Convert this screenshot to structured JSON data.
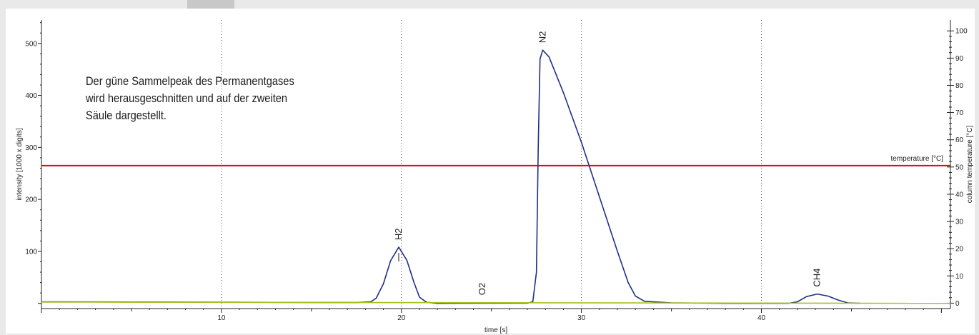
{
  "colors": {
    "background": "#e9e9e9",
    "panel": "#ffffff",
    "chromatogram": "#1f2f86",
    "temperature": "#c81414",
    "baseline": "#a8c020",
    "axis": "#222222",
    "arrow": "#c8c8c8"
  },
  "annotation": {
    "lines": [
      "Der güne Sammelpeak des Permanentgases",
      "wird herausgeschnitten und auf der zweiten",
      "Säule dargestellt."
    ]
  },
  "chart_data": {
    "type": "line",
    "xlabel": "time [s]",
    "ylabel": "intensity [1000 x digits]",
    "y2label": "column temperature [°C]",
    "xlim": [
      0,
      50.5
    ],
    "ylim": [
      -10,
      545
    ],
    "y2lim": [
      -2,
      104
    ],
    "x_ticks": [
      10,
      20,
      30,
      40
    ],
    "y_ticks": [
      100,
      200,
      300,
      400,
      500
    ],
    "y2_ticks": [
      0,
      10,
      20,
      30,
      40,
      50,
      60,
      70,
      80,
      90,
      100
    ],
    "grid": {
      "vertical_dotted": [
        10,
        20,
        30,
        40
      ]
    },
    "series": [
      {
        "name": "intensity",
        "axis": "left",
        "points": [
          [
            0,
            3
          ],
          [
            5,
            2.6
          ],
          [
            10,
            2.2
          ],
          [
            15,
            1.8
          ],
          [
            17.5,
            1.6
          ],
          [
            18.3,
            3
          ],
          [
            18.6,
            10
          ],
          [
            19.0,
            38
          ],
          [
            19.4,
            82
          ],
          [
            19.85,
            108
          ],
          [
            20.3,
            83
          ],
          [
            20.7,
            40
          ],
          [
            21.0,
            12
          ],
          [
            21.4,
            2
          ],
          [
            22,
            0
          ],
          [
            25,
            0.5
          ],
          [
            27,
            0.5
          ],
          [
            27.3,
            3
          ],
          [
            27.5,
            60
          ],
          [
            27.6,
            300
          ],
          [
            27.7,
            470
          ],
          [
            27.85,
            487
          ],
          [
            28.2,
            474
          ],
          [
            29,
            405
          ],
          [
            30,
            310
          ],
          [
            31,
            205
          ],
          [
            32,
            100
          ],
          [
            32.6,
            40
          ],
          [
            33,
            14
          ],
          [
            33.5,
            4
          ],
          [
            35,
            1
          ],
          [
            38,
            0
          ],
          [
            41.5,
            0
          ],
          [
            42.0,
            3
          ],
          [
            42.5,
            13
          ],
          [
            43.1,
            18
          ],
          [
            43.7,
            14
          ],
          [
            44.3,
            6
          ],
          [
            44.8,
            1
          ],
          [
            45.5,
            0
          ]
        ]
      },
      {
        "name": "temperature [°C]",
        "axis": "right",
        "points": [
          [
            0,
            50.5
          ],
          [
            50.5,
            50.5
          ]
        ]
      },
      {
        "name": "baseline",
        "axis": "left",
        "points": [
          [
            0,
            2.5
          ],
          [
            50.5,
            0
          ]
        ]
      }
    ],
    "peak_labels": [
      {
        "text": "H2",
        "x": 19.85,
        "y": 108
      },
      {
        "text": "O2",
        "x": 24.5,
        "y": 2
      },
      {
        "text": "N2",
        "x": 27.85,
        "y": 487
      },
      {
        "text": "CH4",
        "x": 43.1,
        "y": 18
      }
    ],
    "series_label": {
      "text": "temperature [°C]",
      "series": "temperature [°C]"
    }
  }
}
